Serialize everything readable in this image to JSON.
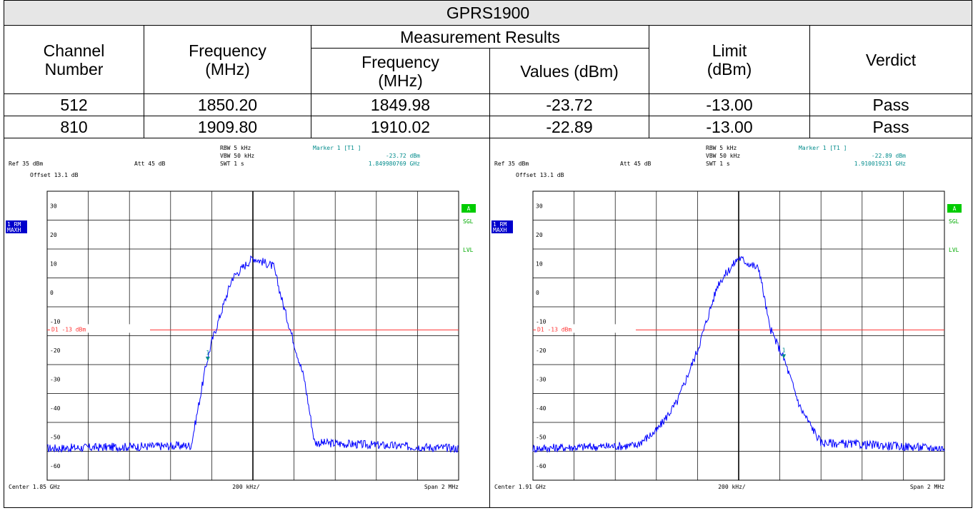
{
  "table": {
    "title": "GPRS1900",
    "headers": {
      "channel": "Channel\nNumber",
      "frequency": "Frequency\n(MHz)",
      "measurement": "Measurement Results",
      "meas_frequency": "Frequency\n(MHz)",
      "values": "Values (dBm)",
      "limit": "Limit\n(dBm)",
      "verdict": "Verdict"
    },
    "rows": [
      {
        "channel": "512",
        "frequency": "1850.20",
        "meas_frequency": "1849.98",
        "value": "-23.72",
        "limit": "-13.00",
        "verdict": "Pass"
      },
      {
        "channel": "810",
        "frequency": "1909.80",
        "meas_frequency": "1910.02",
        "value": "-22.89",
        "limit": "-13.00",
        "verdict": "Pass"
      }
    ]
  },
  "plots": [
    {
      "rbw": "RBW 5 kHz",
      "vbw": "VBW 50 kHz",
      "swt": "SWT 1 s",
      "ref": "Ref  35 dBm",
      "att": "Att  45 dB",
      "offset": "Offset  13.1 dB",
      "marker_title": "Marker 1 [T1 ]",
      "marker_level": "-23.72 dBm",
      "marker_freq": "1.849980769 GHz",
      "trace_label_1": "1 RM",
      "trace_label_2": "MAXH",
      "badge": "A",
      "sgl": "SGL",
      "lvl": "LVL",
      "line_label": "D1 -13 dBm",
      "center": "Center  1.85 GHz",
      "div": "200 kHz/",
      "span": "Span  2 MHz",
      "marker_id": "1",
      "yticks": [
        "30",
        "20",
        "10",
        "0",
        "-10",
        "-20",
        "-30",
        "-40",
        "-50",
        "-60"
      ]
    },
    {
      "rbw": "RBW 5 kHz",
      "vbw": "VBW 50 kHz",
      "swt": "SWT 1 s",
      "ref": "Ref  35 dBm",
      "att": "Att  45 dB",
      "offset": "Offset  13.1 dB",
      "marker_title": "Marker 1 [T1 ]",
      "marker_level": "-22.89 dBm",
      "marker_freq": "1.910019231 GHz",
      "trace_label_1": "1 RM",
      "trace_label_2": "MAXH",
      "badge": "A",
      "sgl": "SGL",
      "lvl": "LVL",
      "line_label": "D1 -13 dBm",
      "center": "Center  1.91 GHz",
      "div": "200 kHz/",
      "span": "Span  2 MHz",
      "marker_id": "1",
      "yticks": [
        "30",
        "20",
        "10",
        "0",
        "-10",
        "-20",
        "-30",
        "-40",
        "-50",
        "-60"
      ]
    }
  ],
  "chart_data": [
    {
      "type": "line",
      "xlim": [
        1849.2,
        1851.2
      ],
      "ylim": [
        -65,
        35
      ],
      "limit_line": -13,
      "marker": {
        "x": 1849.980769,
        "y": -23.72
      },
      "series": [
        {
          "x": [
            1849.2,
            1849.9,
            1849.97,
            1850.0,
            1850.1,
            1850.2,
            1850.3,
            1850.35,
            1850.45,
            1850.5,
            1851.2
          ],
          "values": [
            -54,
            -53,
            -26,
            -17,
            5,
            12,
            9,
            -5,
            -30,
            -52,
            -54
          ]
        }
      ],
      "color": "#0000ff"
    },
    {
      "type": "line",
      "xlim": [
        1908.8,
        1910.8
      ],
      "ylim": [
        -65,
        35
      ],
      "limit_line": -13,
      "marker": {
        "x": 1910.019231,
        "y": -22.89
      },
      "series": [
        {
          "x": [
            1908.8,
            1909.3,
            1909.4,
            1909.5,
            1909.6,
            1909.7,
            1909.8,
            1909.9,
            1909.95,
            1910.02,
            1910.1,
            1910.2,
            1910.8
          ],
          "values": [
            -54,
            -53,
            -48,
            -38,
            -20,
            3,
            12,
            8,
            -12,
            -23,
            -40,
            -52,
            -54
          ]
        }
      ],
      "color": "#0000ff"
    }
  ]
}
